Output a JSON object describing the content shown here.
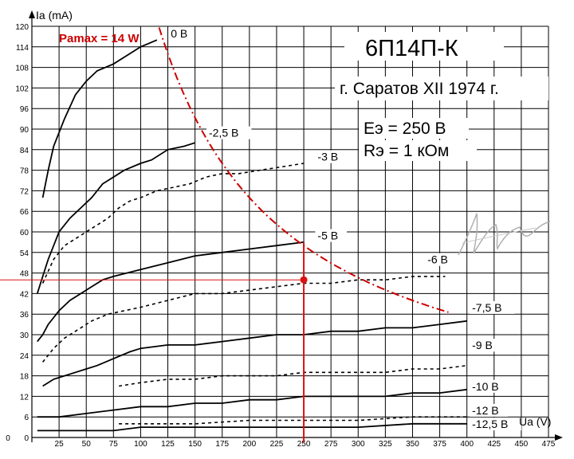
{
  "chart_data": {
    "type": "line",
    "title": "6П14П-К",
    "subtitle": "г. Саратов XII 1974 г.",
    "params": [
      "Eэ = 250 В",
      "Rэ = 1 кОм"
    ],
    "xlabel": "Ua (V)",
    "ylabel": "Ia (mA)",
    "xlim": [
      0,
      475
    ],
    "ylim": [
      0,
      120
    ],
    "x_ticks": [
      0,
      25,
      50,
      75,
      100,
      125,
      150,
      175,
      200,
      225,
      250,
      275,
      300,
      325,
      350,
      375,
      400,
      425,
      450,
      475
    ],
    "y_ticks": [
      0,
      6,
      12,
      18,
      24,
      30,
      36,
      42,
      48,
      54,
      60,
      66,
      72,
      78,
      84,
      90,
      96,
      102,
      108,
      114,
      120
    ],
    "grid": true,
    "series": [
      {
        "name": "0 В",
        "style": "solid",
        "x": [
          10,
          15,
          20,
          30,
          40,
          50,
          60,
          75,
          90,
          100,
          115
        ],
        "y": [
          70,
          78,
          85,
          93,
          100,
          104,
          107,
          109,
          112,
          114,
          116
        ]
      },
      {
        "name": "-2,5 В",
        "style": "solid",
        "x": [
          5,
          10,
          15,
          20,
          25,
          35,
          45,
          55,
          65,
          75,
          85,
          100,
          110,
          125,
          140,
          150
        ],
        "y": [
          42,
          47,
          52,
          56,
          60,
          64,
          67,
          70,
          74,
          76,
          78,
          80,
          81,
          84,
          85,
          86
        ]
      },
      {
        "name": "-3 В",
        "style": "dashed",
        "x": [
          10,
          20,
          30,
          40,
          50,
          60,
          70,
          80,
          90,
          100,
          115,
          130,
          145,
          160,
          175,
          190,
          210,
          230,
          250
        ],
        "y": [
          45,
          52,
          56,
          58,
          60,
          62,
          64,
          67,
          69,
          70,
          72,
          73,
          74,
          76,
          77,
          77,
          78,
          79,
          80
        ]
      },
      {
        "name": "-5 В",
        "style": "solid",
        "x": [
          5,
          10,
          15,
          20,
          25,
          35,
          45,
          55,
          65,
          75,
          100,
          125,
          150,
          175,
          200,
          225,
          250
        ],
        "y": [
          28,
          30,
          33,
          35,
          37,
          40,
          42,
          44,
          46,
          47,
          49,
          51,
          53,
          54,
          55,
          56,
          57
        ]
      },
      {
        "name": "-6 В",
        "style": "dashed",
        "x": [
          10,
          20,
          30,
          40,
          55,
          70,
          85,
          100,
          125,
          150,
          175,
          200,
          225,
          250,
          275,
          300,
          325,
          350,
          380
        ],
        "y": [
          22,
          26,
          29,
          31,
          34,
          36,
          37,
          38,
          40,
          42,
          42,
          43,
          44,
          45,
          45,
          46,
          46,
          47,
          47
        ]
      },
      {
        "name": "-7,5 В",
        "style": "solid",
        "x": [
          10,
          20,
          30,
          40,
          50,
          60,
          75,
          90,
          100,
          125,
          150,
          175,
          200,
          225,
          250,
          275,
          300,
          325,
          350,
          375,
          400
        ],
        "y": [
          15,
          17,
          18,
          19,
          20,
          21,
          23,
          25,
          26,
          27,
          27,
          28,
          29,
          30,
          30,
          31,
          31,
          32,
          32,
          33,
          34
        ]
      },
      {
        "name": "-9 В",
        "style": "dashed",
        "x": [
          80,
          100,
          125,
          150,
          175,
          200,
          225,
          250,
          275,
          300,
          325,
          350,
          375,
          400
        ],
        "y": [
          15,
          16,
          17,
          17,
          18,
          18,
          18,
          19,
          19,
          19,
          19,
          20,
          20,
          21
        ]
      },
      {
        "name": "-10 В",
        "style": "solid",
        "x": [
          5,
          25,
          50,
          75,
          100,
          125,
          150,
          175,
          200,
          225,
          250,
          275,
          300,
          325,
          350,
          375,
          400
        ],
        "y": [
          6,
          6,
          7,
          8,
          9,
          9,
          10,
          10,
          11,
          11,
          12,
          12,
          12,
          12,
          13,
          13,
          14
        ]
      },
      {
        "name": "-12 В",
        "style": "dashed",
        "x": [
          80,
          100,
          150,
          200,
          250,
          300,
          350,
          400
        ],
        "y": [
          4,
          4,
          4,
          5,
          5,
          5,
          6,
          6
        ]
      },
      {
        "name": "-12,5 В",
        "style": "solid",
        "x": [
          5,
          25,
          50,
          75,
          100,
          150,
          200,
          250,
          300,
          350,
          400
        ],
        "y": [
          2,
          2,
          2,
          2,
          3,
          3,
          3,
          3,
          3,
          4,
          4
        ]
      }
    ],
    "pmax_curve": {
      "label": "Pamax = 14 W",
      "color": "#cc0000",
      "watts": 14,
      "x_range": [
        117,
        383
      ]
    },
    "operating_point": {
      "x": 250,
      "y": 46,
      "color": "#dd1111"
    },
    "label_positions": [
      {
        "text": "0 В",
        "x": 127,
        "y": 117
      },
      {
        "text": "-2,5 В",
        "x": 162,
        "y": 88
      },
      {
        "text": "-3 В",
        "x": 262,
        "y": 81
      },
      {
        "text": "-5 В",
        "x": 262,
        "y": 58
      },
      {
        "text": "-6 В",
        "x": 363,
        "y": 51
      },
      {
        "text": "-7,5 В",
        "x": 404,
        "y": 37
      },
      {
        "text": "-9 В",
        "x": 404,
        "y": 26
      },
      {
        "text": "-10 В",
        "x": 404,
        "y": 14
      },
      {
        "text": "-12 В",
        "x": 404,
        "y": 7
      },
      {
        "text": "-12,5 В",
        "x": 404,
        "y": 3
      }
    ]
  }
}
